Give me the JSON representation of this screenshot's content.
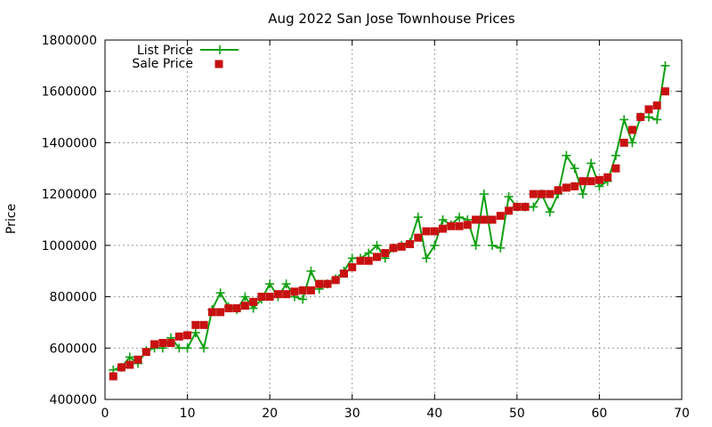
{
  "chart_data": {
    "type": "line",
    "title": "Aug 2022 San Jose Townhouse Prices",
    "xlabel": "",
    "ylabel": "Price",
    "xlim": [
      0,
      70
    ],
    "ylim": [
      400000,
      1800000
    ],
    "xticks": [
      0,
      10,
      20,
      30,
      40,
      50,
      60,
      70
    ],
    "xtick_labels": [
      "0",
      "10",
      "20",
      "30",
      "40",
      "50",
      "60",
      "70"
    ],
    "yticks": [
      400000,
      600000,
      800000,
      1000000,
      1200000,
      1400000,
      1600000,
      1800000
    ],
    "ytick_labels": [
      "400000",
      "600000",
      "800000",
      "1000000",
      "1200000",
      "1400000",
      "1600000",
      "1800000"
    ],
    "grid": true,
    "legend_position": "top-left",
    "series": [
      {
        "name": "List Price",
        "style": "line-plus",
        "color": "#11a011",
        "x": [
          1,
          2,
          3,
          4,
          5,
          6,
          7,
          8,
          9,
          10,
          11,
          12,
          13,
          14,
          15,
          16,
          17,
          18,
          19,
          20,
          21,
          22,
          23,
          24,
          25,
          26,
          27,
          28,
          29,
          30,
          31,
          32,
          33,
          34,
          35,
          36,
          37,
          38,
          39,
          40,
          41,
          42,
          43,
          44,
          45,
          46,
          47,
          48,
          49,
          50,
          51,
          52,
          53,
          54,
          55,
          56,
          57,
          58,
          59,
          60,
          61,
          62,
          63,
          64,
          65,
          66,
          67,
          68
        ],
        "values": [
          515000,
          525000,
          565000,
          540000,
          590000,
          600000,
          600000,
          640000,
          600000,
          600000,
          660000,
          600000,
          750000,
          815000,
          760000,
          750000,
          800000,
          755000,
          790000,
          850000,
          800000,
          850000,
          800000,
          790000,
          900000,
          830000,
          850000,
          870000,
          900000,
          950000,
          950000,
          970000,
          1000000,
          950000,
          990000,
          1000000,
          1010000,
          1110000,
          950000,
          1000000,
          1100000,
          1080000,
          1110000,
          1100000,
          1000000,
          1200000,
          1000000,
          990000,
          1190000,
          1150000,
          1150000,
          1150000,
          1200000,
          1130000,
          1200000,
          1350000,
          1300000,
          1200000,
          1320000,
          1230000,
          1250000,
          1350000,
          1490000,
          1400000,
          1500000,
          1500000,
          1490000,
          1700000
        ]
      },
      {
        "name": "Sale Price",
        "style": "square",
        "color": "#c81010",
        "x": [
          1,
          2,
          3,
          4,
          5,
          6,
          7,
          8,
          9,
          10,
          11,
          12,
          13,
          14,
          15,
          16,
          17,
          18,
          19,
          20,
          21,
          22,
          23,
          24,
          25,
          26,
          27,
          28,
          29,
          30,
          31,
          32,
          33,
          34,
          35,
          36,
          37,
          38,
          39,
          40,
          41,
          42,
          43,
          44,
          45,
          46,
          47,
          48,
          49,
          50,
          51,
          52,
          53,
          54,
          55,
          56,
          57,
          58,
          59,
          60,
          61,
          62,
          63,
          64,
          65,
          66,
          67,
          68
        ],
        "values": [
          490000,
          525000,
          535000,
          555000,
          585000,
          615000,
          620000,
          620000,
          645000,
          650000,
          690000,
          690000,
          740000,
          740000,
          755000,
          755000,
          765000,
          780000,
          800000,
          800000,
          810000,
          810000,
          820000,
          825000,
          825000,
          850000,
          850000,
          865000,
          890000,
          915000,
          940000,
          940000,
          955000,
          970000,
          990000,
          995000,
          1005000,
          1030000,
          1055000,
          1055000,
          1065000,
          1075000,
          1075000,
          1080000,
          1100000,
          1100000,
          1100000,
          1115000,
          1135000,
          1150000,
          1150000,
          1200000,
          1200000,
          1200000,
          1215000,
          1225000,
          1230000,
          1250000,
          1250000,
          1255000,
          1265000,
          1300000,
          1400000,
          1450000,
          1500000,
          1530000,
          1545000,
          1600000
        ]
      }
    ]
  }
}
